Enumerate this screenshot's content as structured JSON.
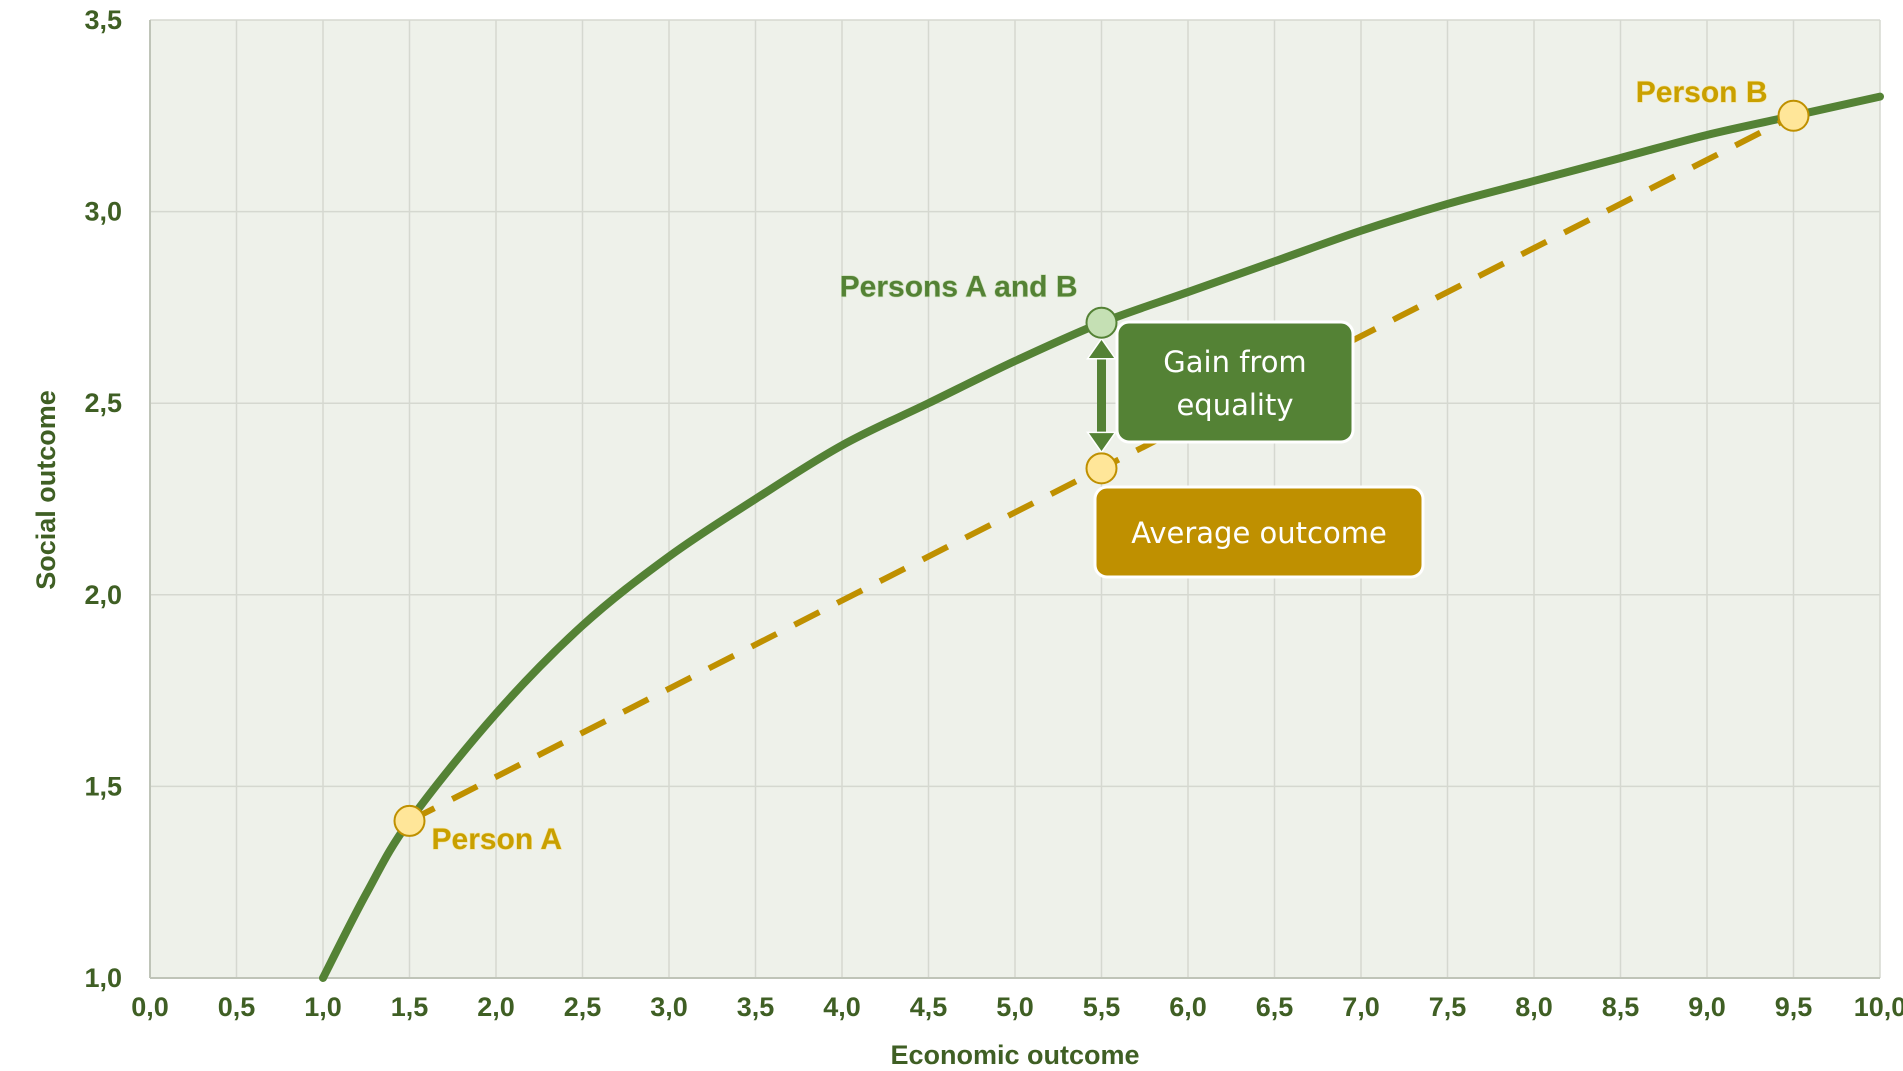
{
  "chart_data": {
    "type": "line",
    "xlabel": "Economic outcome",
    "ylabel": "Social outcome",
    "xlim": [
      0,
      10
    ],
    "ylim": [
      1,
      3.5
    ],
    "x_ticks": [
      "0,0",
      "0,5",
      "1,0",
      "1,5",
      "2,0",
      "2,5",
      "3,0",
      "3,5",
      "4,0",
      "4,5",
      "5,0",
      "5,5",
      "6,0",
      "6,5",
      "7,0",
      "7,5",
      "8,0",
      "8,5",
      "9,0",
      "9,5",
      "10,0"
    ],
    "y_ticks": [
      "1,0",
      "1,5",
      "2,0",
      "2,5",
      "3,0",
      "3,5"
    ],
    "grid": true,
    "series": [
      {
        "kind": "curve",
        "color": "#548235",
        "x": [
          1.0,
          1.25,
          1.5,
          2.0,
          2.5,
          3.0,
          3.5,
          4.0,
          4.5,
          5.0,
          5.5,
          6.0,
          6.5,
          7.0,
          7.5,
          8.0,
          8.5,
          9.0,
          9.5,
          10.0
        ],
        "values": [
          1.0,
          1.22,
          1.41,
          1.69,
          1.92,
          2.1,
          2.25,
          2.39,
          2.5,
          2.61,
          2.71,
          2.79,
          2.87,
          2.95,
          3.02,
          3.08,
          3.14,
          3.2,
          3.25,
          3.3
        ]
      },
      {
        "kind": "dashed",
        "color": "#bf9000",
        "x": [
          1.5,
          9.5
        ],
        "values": [
          1.41,
          3.25
        ]
      }
    ],
    "points": [
      {
        "id": "person-a",
        "x": 1.5,
        "y": 1.41,
        "label": "Person A",
        "fill": "#ffe699",
        "stroke": "#bf9000"
      },
      {
        "id": "person-b",
        "x": 9.5,
        "y": 3.25,
        "label": "Person B",
        "fill": "#ffe699",
        "stroke": "#bf9000"
      },
      {
        "id": "persons-ab",
        "x": 5.5,
        "y": 2.71,
        "label": "Persons A and B",
        "fill": "#c5e0b4",
        "stroke": "#548235"
      },
      {
        "id": "average",
        "x": 5.5,
        "y": 2.33,
        "label": "",
        "fill": "#ffe699",
        "stroke": "#bf9000"
      }
    ],
    "annotations": {
      "gain_line1": "Gain from",
      "gain_line2": "equality",
      "average_label": "Average outcome"
    },
    "colors": {
      "plot_background": "#eef1ea",
      "grid": "#d5d8d0",
      "curve": "#548235",
      "dashed": "#bf9000",
      "gain_box": "#548235",
      "average_box": "#bf9000"
    }
  }
}
